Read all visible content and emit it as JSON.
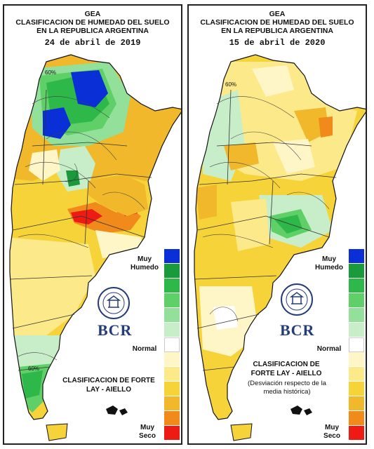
{
  "panels": [
    {
      "org": "GEA",
      "title_l1": "CLASIFICACION DE HUMEDAD DEL SUELO",
      "title_l2": "EN LA REPUBLICA ARGENTINA",
      "date": "24 de abril de 2019",
      "logo_text": "BCR",
      "method": "CLASIFICACION DE FORTE LAY - AIELLO",
      "legend_top": "Muy Humedo",
      "legend_mid": "Normal",
      "legend_bot": "Muy Seco"
    },
    {
      "org": "GEA",
      "title_l1": "CLASIFICACION DE HUMEDAD DEL SUELO",
      "title_l2": "EN LA REPUBLICA ARGENTINA",
      "date": "15 de abril de 2020",
      "logo_text": "BCR",
      "method": "CLASIFICACION DE FORTE LAY - AIELLO",
      "note": "(Desviación respecto de la media histórica)",
      "legend_top": "Muy Humedo",
      "legend_mid": "Normal",
      "legend_bot": "Muy Seco"
    }
  ],
  "legend_colors": [
    "#0a2fd6",
    "#1a9a3a",
    "#2fb84a",
    "#5fd068",
    "#93e09a",
    "#c8eec9",
    "#ffffff",
    "#fff6c8",
    "#fce98a",
    "#f7d33a",
    "#f0b82a",
    "#f08a1a",
    "#ee1a14"
  ],
  "seal_text": "BOLSA DE COMERCIO DE ROSARIO"
}
